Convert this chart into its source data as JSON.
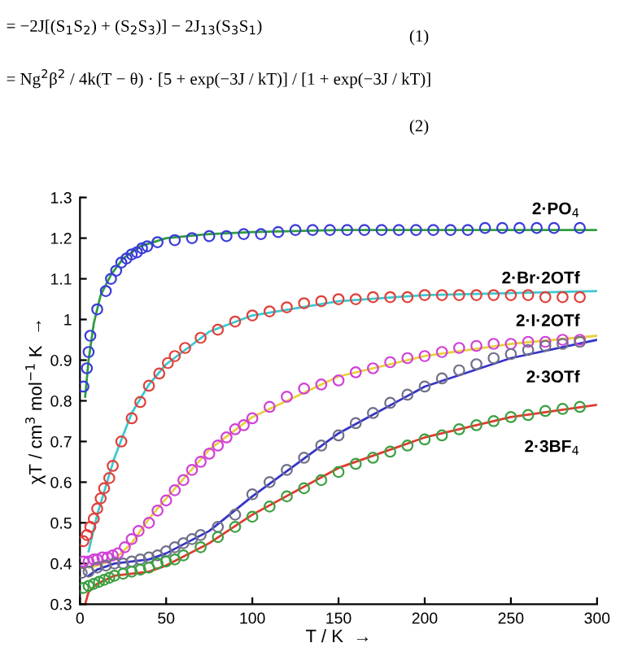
{
  "chart_data": {
    "type": "scatter",
    "xlabel": "T / K  →",
    "ylabel": "χT / cm$^{3}$ mol$^{−1}$ K  →",
    "annotations": [
      "= −2J[(S$_{1}$S$_{2}$) + (S$_{2}$S$_{3}$)] − 2J$_{13}$(S$_{3}$S$_{1}$)",
      "(1)",
      "= Ng$^{2}$β$^{2}$ / 4k(T − θ) · [5 + exp(−3J / kT)] / [1 + exp(−3J / kT)]",
      "(2)"
    ],
    "xlim": [
      0,
      300
    ],
    "xticks": [
      0,
      50,
      100,
      150,
      200,
      250,
      300
    ],
    "ylim": [
      0.3,
      1.3
    ],
    "yticks": [
      0.3,
      0.4,
      0.5,
      0.6,
      0.7,
      0.8,
      0.9,
      {
        "value": 1.0,
        "label": "1"
      },
      1.1,
      1.2,
      1.3
    ],
    "grid": false,
    "legend": false,
    "series": [
      {
        "type": "line",
        "color": "#2e9e3e",
        "x": [
          3,
          5,
          8,
          12,
          18,
          25,
          35,
          50,
          75,
          100,
          150,
          300
        ],
        "values": [
          0.81,
          0.9,
          0.99,
          1.06,
          1.11,
          1.15,
          1.18,
          1.2,
          1.21,
          1.215,
          1.22,
          1.22
        ]
      },
      {
        "marker": "circle",
        "name": "2·PO$_{4}$",
        "color": "#3a3ad8",
        "x": [
          2,
          4,
          5,
          6,
          10,
          15,
          18,
          21,
          24,
          27,
          30,
          33,
          36,
          39,
          45,
          55,
          65,
          75,
          85,
          95,
          105,
          115,
          125,
          135,
          145,
          155,
          165,
          175,
          185,
          195,
          205,
          215,
          225,
          235,
          245,
          255,
          265,
          275,
          290
        ],
        "values": [
          0.835,
          0.88,
          0.92,
          0.96,
          1.025,
          1.07,
          1.1,
          1.12,
          1.14,
          1.15,
          1.16,
          1.165,
          1.175,
          1.18,
          1.19,
          1.195,
          1.2,
          1.205,
          1.205,
          1.21,
          1.21,
          1.215,
          1.22,
          1.22,
          1.22,
          1.22,
          1.22,
          1.22,
          1.22,
          1.22,
          1.22,
          1.22,
          1.22,
          1.225,
          1.225,
          1.225,
          1.225,
          1.225,
          1.225
        ]
      },
      {
        "type": "line",
        "color": "#3cc8d0",
        "x": [
          5,
          10,
          20,
          30,
          40,
          50,
          75,
          100,
          150,
          200,
          300
        ],
        "values": [
          0.43,
          0.52,
          0.66,
          0.77,
          0.84,
          0.89,
          0.97,
          1.01,
          1.045,
          1.06,
          1.07
        ]
      },
      {
        "marker": "circle",
        "name": "2·Br·2OTf",
        "color": "#e0403a",
        "x": [
          2,
          4,
          6,
          8,
          10,
          12,
          14,
          17,
          19,
          24,
          30,
          35,
          40,
          46,
          51,
          55,
          61,
          70,
          80,
          90,
          100,
          110,
          120,
          130,
          140,
          150,
          160,
          170,
          180,
          190,
          200,
          210,
          220,
          230,
          240,
          250,
          260,
          270,
          280,
          290
        ],
        "values": [
          0.455,
          0.47,
          0.49,
          0.51,
          0.535,
          0.56,
          0.585,
          0.61,
          0.64,
          0.7,
          0.757,
          0.797,
          0.837,
          0.867,
          0.893,
          0.91,
          0.93,
          0.955,
          0.975,
          0.995,
          1.01,
          1.02,
          1.03,
          1.04,
          1.045,
          1.05,
          1.05,
          1.055,
          1.055,
          1.055,
          1.06,
          1.06,
          1.06,
          1.06,
          1.06,
          1.06,
          1.06,
          1.055,
          1.055,
          1.055
        ]
      },
      {
        "type": "line",
        "color": "#e8d040",
        "x": [
          5,
          10,
          20,
          30,
          40,
          50,
          75,
          100,
          150,
          200,
          250,
          300
        ],
        "values": [
          0.39,
          0.395,
          0.41,
          0.45,
          0.51,
          0.56,
          0.68,
          0.76,
          0.86,
          0.91,
          0.94,
          0.96
        ]
      },
      {
        "marker": "circle",
        "name": "2·I·2OTf",
        "color": "#d040d8",
        "x": [
          2,
          5,
          8,
          10,
          13,
          16,
          19,
          22,
          26,
          30,
          34,
          40,
          45,
          50,
          55,
          60,
          65,
          70,
          75,
          80,
          85,
          90,
          95,
          100,
          110,
          120,
          130,
          140,
          150,
          160,
          170,
          180,
          190,
          200,
          210,
          220,
          230,
          240,
          250,
          260,
          270,
          280,
          290
        ],
        "values": [
          0.405,
          0.405,
          0.41,
          0.41,
          0.415,
          0.415,
          0.42,
          0.425,
          0.44,
          0.46,
          0.48,
          0.5,
          0.53,
          0.555,
          0.58,
          0.605,
          0.63,
          0.65,
          0.67,
          0.69,
          0.71,
          0.73,
          0.74,
          0.757,
          0.785,
          0.81,
          0.83,
          0.84,
          0.85,
          0.87,
          0.88,
          0.895,
          0.905,
          0.91,
          0.92,
          0.93,
          0.935,
          0.94,
          0.94,
          0.945,
          0.945,
          0.95,
          0.95
        ]
      },
      {
        "type": "line",
        "color": "#3535c8",
        "x": [
          5,
          10,
          20,
          30,
          40,
          50,
          75,
          100,
          150,
          200,
          250,
          300
        ],
        "values": [
          0.37,
          0.385,
          0.4,
          0.405,
          0.41,
          0.425,
          0.48,
          0.565,
          0.72,
          0.835,
          0.905,
          0.95
        ]
      },
      {
        "marker": "circle",
        "name": "2·3OTf",
        "color": "#707088",
        "x": [
          1,
          5,
          10,
          15,
          20,
          25,
          30,
          35,
          40,
          45,
          50,
          55,
          60,
          65,
          70,
          80,
          90,
          100,
          110,
          120,
          130,
          140,
          150,
          160,
          170,
          180,
          190,
          200,
          210,
          220,
          230,
          240,
          250,
          260,
          270,
          280,
          290
        ],
        "values": [
          0.377,
          0.38,
          0.39,
          0.395,
          0.4,
          0.4,
          0.405,
          0.41,
          0.415,
          0.42,
          0.43,
          0.44,
          0.45,
          0.46,
          0.47,
          0.49,
          0.52,
          0.57,
          0.6,
          0.63,
          0.66,
          0.69,
          0.715,
          0.745,
          0.77,
          0.795,
          0.815,
          0.835,
          0.855,
          0.875,
          0.89,
          0.905,
          0.915,
          0.925,
          0.935,
          0.94,
          0.945
        ]
      },
      {
        "type": "line",
        "color": "#e03a30",
        "x": [
          3,
          5,
          10,
          20,
          30,
          40,
          50,
          75,
          100,
          150,
          200,
          250,
          300
        ],
        "values": [
          0.3,
          0.33,
          0.35,
          0.37,
          0.375,
          0.38,
          0.395,
          0.45,
          0.52,
          0.635,
          0.71,
          0.76,
          0.79
        ]
      },
      {
        "marker": "circle",
        "name": "2·3BF$_{4}$",
        "color": "#3aa040",
        "x": [
          2,
          5,
          8,
          11,
          14,
          17,
          20,
          25,
          30,
          35,
          40,
          45,
          50,
          55,
          60,
          70,
          80,
          90,
          100,
          110,
          120,
          130,
          140,
          150,
          160,
          170,
          180,
          190,
          200,
          210,
          220,
          230,
          240,
          250,
          260,
          270,
          280,
          290
        ],
        "values": [
          0.34,
          0.345,
          0.35,
          0.355,
          0.36,
          0.365,
          0.37,
          0.375,
          0.38,
          0.385,
          0.39,
          0.4,
          0.405,
          0.41,
          0.42,
          0.44,
          0.465,
          0.49,
          0.515,
          0.54,
          0.565,
          0.585,
          0.605,
          0.625,
          0.645,
          0.66,
          0.675,
          0.69,
          0.705,
          0.715,
          0.73,
          0.74,
          0.75,
          0.76,
          0.765,
          0.775,
          0.78,
          0.785
        ]
      }
    ]
  }
}
